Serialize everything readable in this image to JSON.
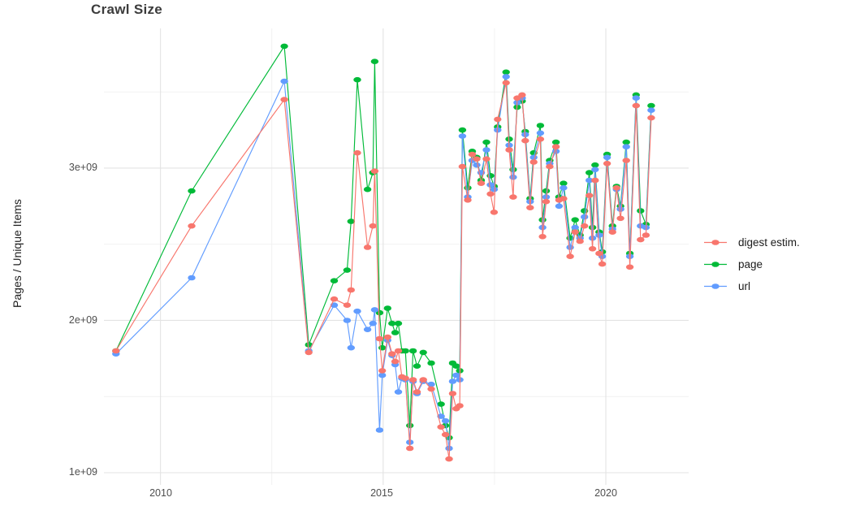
{
  "title": "Crawl Size",
  "y_axis": {
    "label": "Pages / Unique Items",
    "ticks": [
      "3e+09",
      "2e+09",
      "1e+09"
    ]
  },
  "x_axis": {
    "label": "",
    "ticks": [
      "2010",
      "2015",
      "2020"
    ]
  },
  "legend": {
    "items": [
      {
        "label": "digest estim.",
        "color": "#F8766D"
      },
      {
        "label": "page",
        "color": "#00BA38"
      },
      {
        "label": "url",
        "color": "#619CFF"
      }
    ]
  },
  "chart_data": {
    "type": "line",
    "title": "Crawl Size",
    "xlabel": "",
    "ylabel": "Pages / Unique Items",
    "units": "values in billions of pages/items (1e9)",
    "grid": true,
    "legend_position": "right",
    "xlim": [
      2008.73,
      2021.86
    ],
    "ylim": [
      0.92,
      3.917
    ],
    "x_ticks": [
      2010,
      2015,
      2020
    ],
    "x_minor_ticks": [
      2012.5,
      2017.5
    ],
    "y_ticks": [
      1,
      2,
      3
    ],
    "y_tick_labels": [
      "1e+09",
      "2e+09",
      "3e+09"
    ],
    "y_minor_ticks": [
      1.5,
      2.5,
      3.5
    ],
    "x": [
      2009.0,
      2010.7,
      2012.78,
      2013.33,
      2013.9,
      2014.19,
      2014.28,
      2014.42,
      2014.65,
      2014.77,
      2014.81,
      2014.92,
      2014.98,
      2015.1,
      2015.2,
      2015.27,
      2015.34,
      2015.42,
      2015.5,
      2015.6,
      2015.67,
      2015.76,
      2015.9,
      2016.08,
      2016.3,
      2016.4,
      2016.48,
      2016.56,
      2016.64,
      2016.72,
      2016.78,
      2016.9,
      2017.0,
      2017.1,
      2017.2,
      2017.32,
      2017.41,
      2017.49,
      2017.57,
      2017.76,
      2017.83,
      2017.92,
      2018.01,
      2018.12,
      2018.19,
      2018.3,
      2018.38,
      2018.53,
      2018.58,
      2018.66,
      2018.74,
      2018.88,
      2018.95,
      2019.05,
      2019.2,
      2019.31,
      2019.42,
      2019.52,
      2019.63,
      2019.7,
      2019.76,
      2019.85,
      2019.92,
      2020.03,
      2020.15,
      2020.24,
      2020.33,
      2020.46,
      2020.54,
      2020.68,
      2020.78,
      2020.9,
      2021.02
    ],
    "series": [
      {
        "name": "digest estim.",
        "color": "#F8766D",
        "values": [
          1.8,
          2.62,
          3.45,
          1.79,
          2.14,
          2.1,
          2.2,
          3.1,
          2.48,
          2.62,
          2.98,
          1.88,
          1.67,
          1.89,
          1.78,
          1.73,
          1.8,
          1.63,
          1.62,
          1.16,
          1.61,
          1.53,
          1.61,
          1.55,
          1.3,
          1.25,
          1.09,
          1.52,
          1.42,
          1.44,
          3.01,
          2.79,
          3.09,
          3.06,
          2.9,
          3.06,
          2.83,
          2.71,
          3.32,
          3.56,
          3.12,
          2.81,
          3.46,
          3.48,
          3.18,
          2.74,
          3.04,
          3.19,
          2.55,
          2.78,
          3.01,
          3.14,
          2.79,
          2.8,
          2.42,
          2.58,
          2.52,
          2.62,
          2.82,
          2.47,
          2.92,
          2.44,
          2.37,
          3.03,
          2.58,
          2.87,
          2.67,
          3.05,
          2.35,
          3.41,
          2.53,
          2.56,
          3.33
        ]
      },
      {
        "name": "page",
        "color": "#00BA38",
        "values": [
          1.8,
          2.85,
          3.8,
          1.84,
          2.26,
          2.33,
          2.65,
          3.58,
          2.86,
          2.97,
          3.7,
          2.05,
          1.82,
          2.08,
          1.98,
          1.92,
          1.98,
          1.8,
          1.8,
          1.31,
          1.8,
          1.7,
          1.79,
          1.72,
          1.45,
          1.31,
          1.23,
          1.72,
          1.7,
          1.67,
          3.25,
          2.87,
          3.11,
          3.07,
          2.92,
          3.17,
          2.95,
          2.88,
          3.27,
          3.63,
          3.19,
          2.99,
          3.4,
          3.44,
          3.24,
          2.8,
          3.1,
          3.28,
          2.66,
          2.85,
          3.05,
          3.17,
          2.81,
          2.9,
          2.54,
          2.66,
          2.56,
          2.72,
          2.97,
          2.61,
          3.02,
          2.58,
          2.45,
          3.09,
          2.62,
          2.88,
          2.75,
          3.17,
          2.44,
          3.48,
          2.72,
          2.63,
          3.41
        ]
      },
      {
        "name": "url",
        "color": "#619CFF",
        "values": [
          1.78,
          2.28,
          3.57,
          1.8,
          2.1,
          2.0,
          1.82,
          2.06,
          1.94,
          1.98,
          2.07,
          1.28,
          1.64,
          1.87,
          1.77,
          1.71,
          1.53,
          1.62,
          1.61,
          1.2,
          1.6,
          1.52,
          1.6,
          1.58,
          1.37,
          1.34,
          1.16,
          1.6,
          1.64,
          1.61,
          3.21,
          2.81,
          3.05,
          3.02,
          2.97,
          3.12,
          2.89,
          2.86,
          3.25,
          3.6,
          3.15,
          2.94,
          3.43,
          3.46,
          3.22,
          2.78,
          3.07,
          3.23,
          2.61,
          2.81,
          3.03,
          3.11,
          2.75,
          2.87,
          2.48,
          2.61,
          2.54,
          2.68,
          2.92,
          2.54,
          2.99,
          2.56,
          2.42,
          3.07,
          2.6,
          2.86,
          2.73,
          3.14,
          2.42,
          3.46,
          2.62,
          2.61,
          3.38
        ]
      }
    ]
  }
}
